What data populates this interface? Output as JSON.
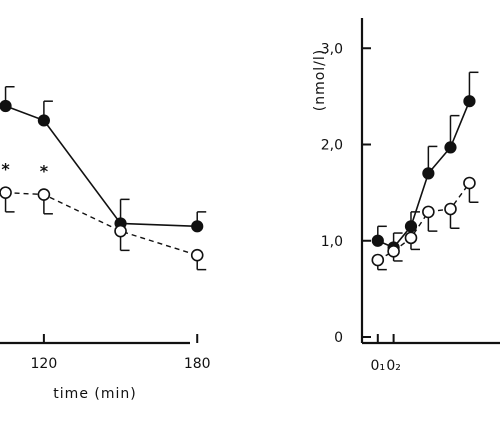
{
  "chart_data": [
    {
      "type": "line",
      "xlabel": "time   (min)",
      "ylabel": "",
      "x_ticks": [
        {
          "value": 120,
          "label": "120"
        },
        {
          "value": 180,
          "label": "180"
        }
      ],
      "xlim": [
        95,
        185
      ],
      "ylim": [
        0,
        3.2
      ],
      "series": [
        {
          "style": "filled-solid",
          "x": [
            105,
            120,
            150,
            180
          ],
          "y": [
            2.4,
            2.25,
            1.18,
            1.15
          ],
          "err": [
            0.2,
            0.2,
            0.25,
            0.15
          ]
        },
        {
          "style": "open-dashed",
          "x": [
            105,
            120,
            150,
            180
          ],
          "y": [
            1.5,
            1.48,
            1.1,
            0.85
          ],
          "err": [
            0.2,
            0.2,
            0.2,
            0.15
          ]
        }
      ],
      "annotations": [
        {
          "text": "*",
          "x": 105,
          "y": 1.75
        },
        {
          "text": "*",
          "x": 120,
          "y": 1.73
        }
      ]
    },
    {
      "type": "line",
      "xlabel": "",
      "ylabel": "(nmol/l)",
      "y_ticks": [
        {
          "value": 0,
          "label": "0"
        },
        {
          "value": 1,
          "label": "1,0"
        },
        {
          "value": 2,
          "label": "2,0"
        },
        {
          "value": 3,
          "label": "3,0"
        }
      ],
      "x_tick_labels": [
        "0₁",
        "0₂"
      ],
      "xlim": [
        0,
        10
      ],
      "ylim": [
        0,
        3.2
      ],
      "series": [
        {
          "style": "filled-solid",
          "x": [
            1,
            2,
            3.1,
            4.2,
            5.6,
            6.8
          ],
          "y": [
            1.0,
            0.93,
            1.15,
            1.7,
            1.97,
            2.45
          ],
          "err": [
            0.15,
            0.15,
            0.15,
            0.28,
            0.33,
            0.3
          ]
        },
        {
          "style": "open-dashed",
          "x": [
            1,
            2,
            3.1,
            4.2,
            5.6,
            6.8
          ],
          "y": [
            0.8,
            0.89,
            1.03,
            1.3,
            1.33,
            1.6
          ],
          "err": [
            0.1,
            0.1,
            0.12,
            0.2,
            0.2,
            0.2
          ]
        }
      ]
    }
  ]
}
